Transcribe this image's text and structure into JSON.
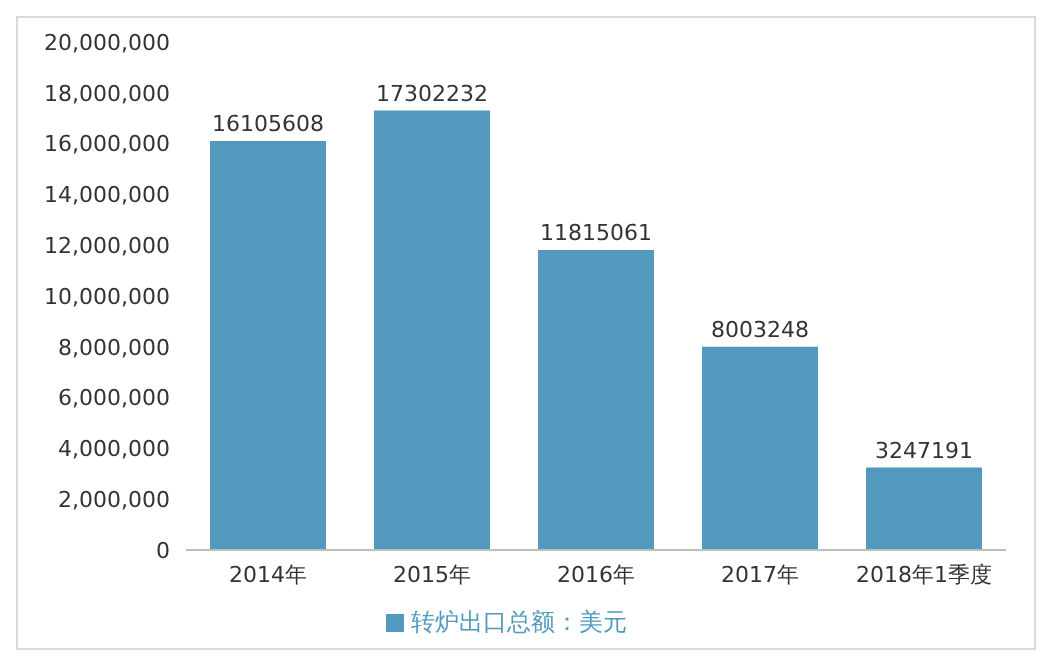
{
  "chart_data": {
    "type": "bar",
    "categories": [
      "2014年",
      "2015年",
      "2016年",
      "2017年",
      "2018年1季度"
    ],
    "series": [
      {
        "name": "转炉出口总额：美元",
        "color": "#5299be",
        "values": [
          16105608,
          17302232,
          11815061,
          8003248,
          3247191
        ]
      }
    ],
    "ylim": [
      0,
      20000000
    ],
    "yticks": [
      0,
      {
        "value": 2000000,
        "label": "2,000,000"
      },
      {
        "value": 4000000,
        "label": "4,000,000"
      },
      {
        "value": 6000000,
        "label": "6,000,000"
      },
      {
        "value": 8000000,
        "label": "8,000,000"
      },
      {
        "value": 10000000,
        "label": "10,000,000"
      },
      {
        "value": 12000000,
        "label": "12,000,000"
      },
      {
        "value": 14000000,
        "label": "14,000,000"
      },
      {
        "value": 16000000,
        "label": "16,000,000"
      },
      {
        "value": 18000000,
        "label": "18,000,000"
      },
      {
        "value": 20000000,
        "label": "20,000,000"
      }
    ],
    "data_labels": true,
    "legend": "bottom",
    "grid": false
  }
}
